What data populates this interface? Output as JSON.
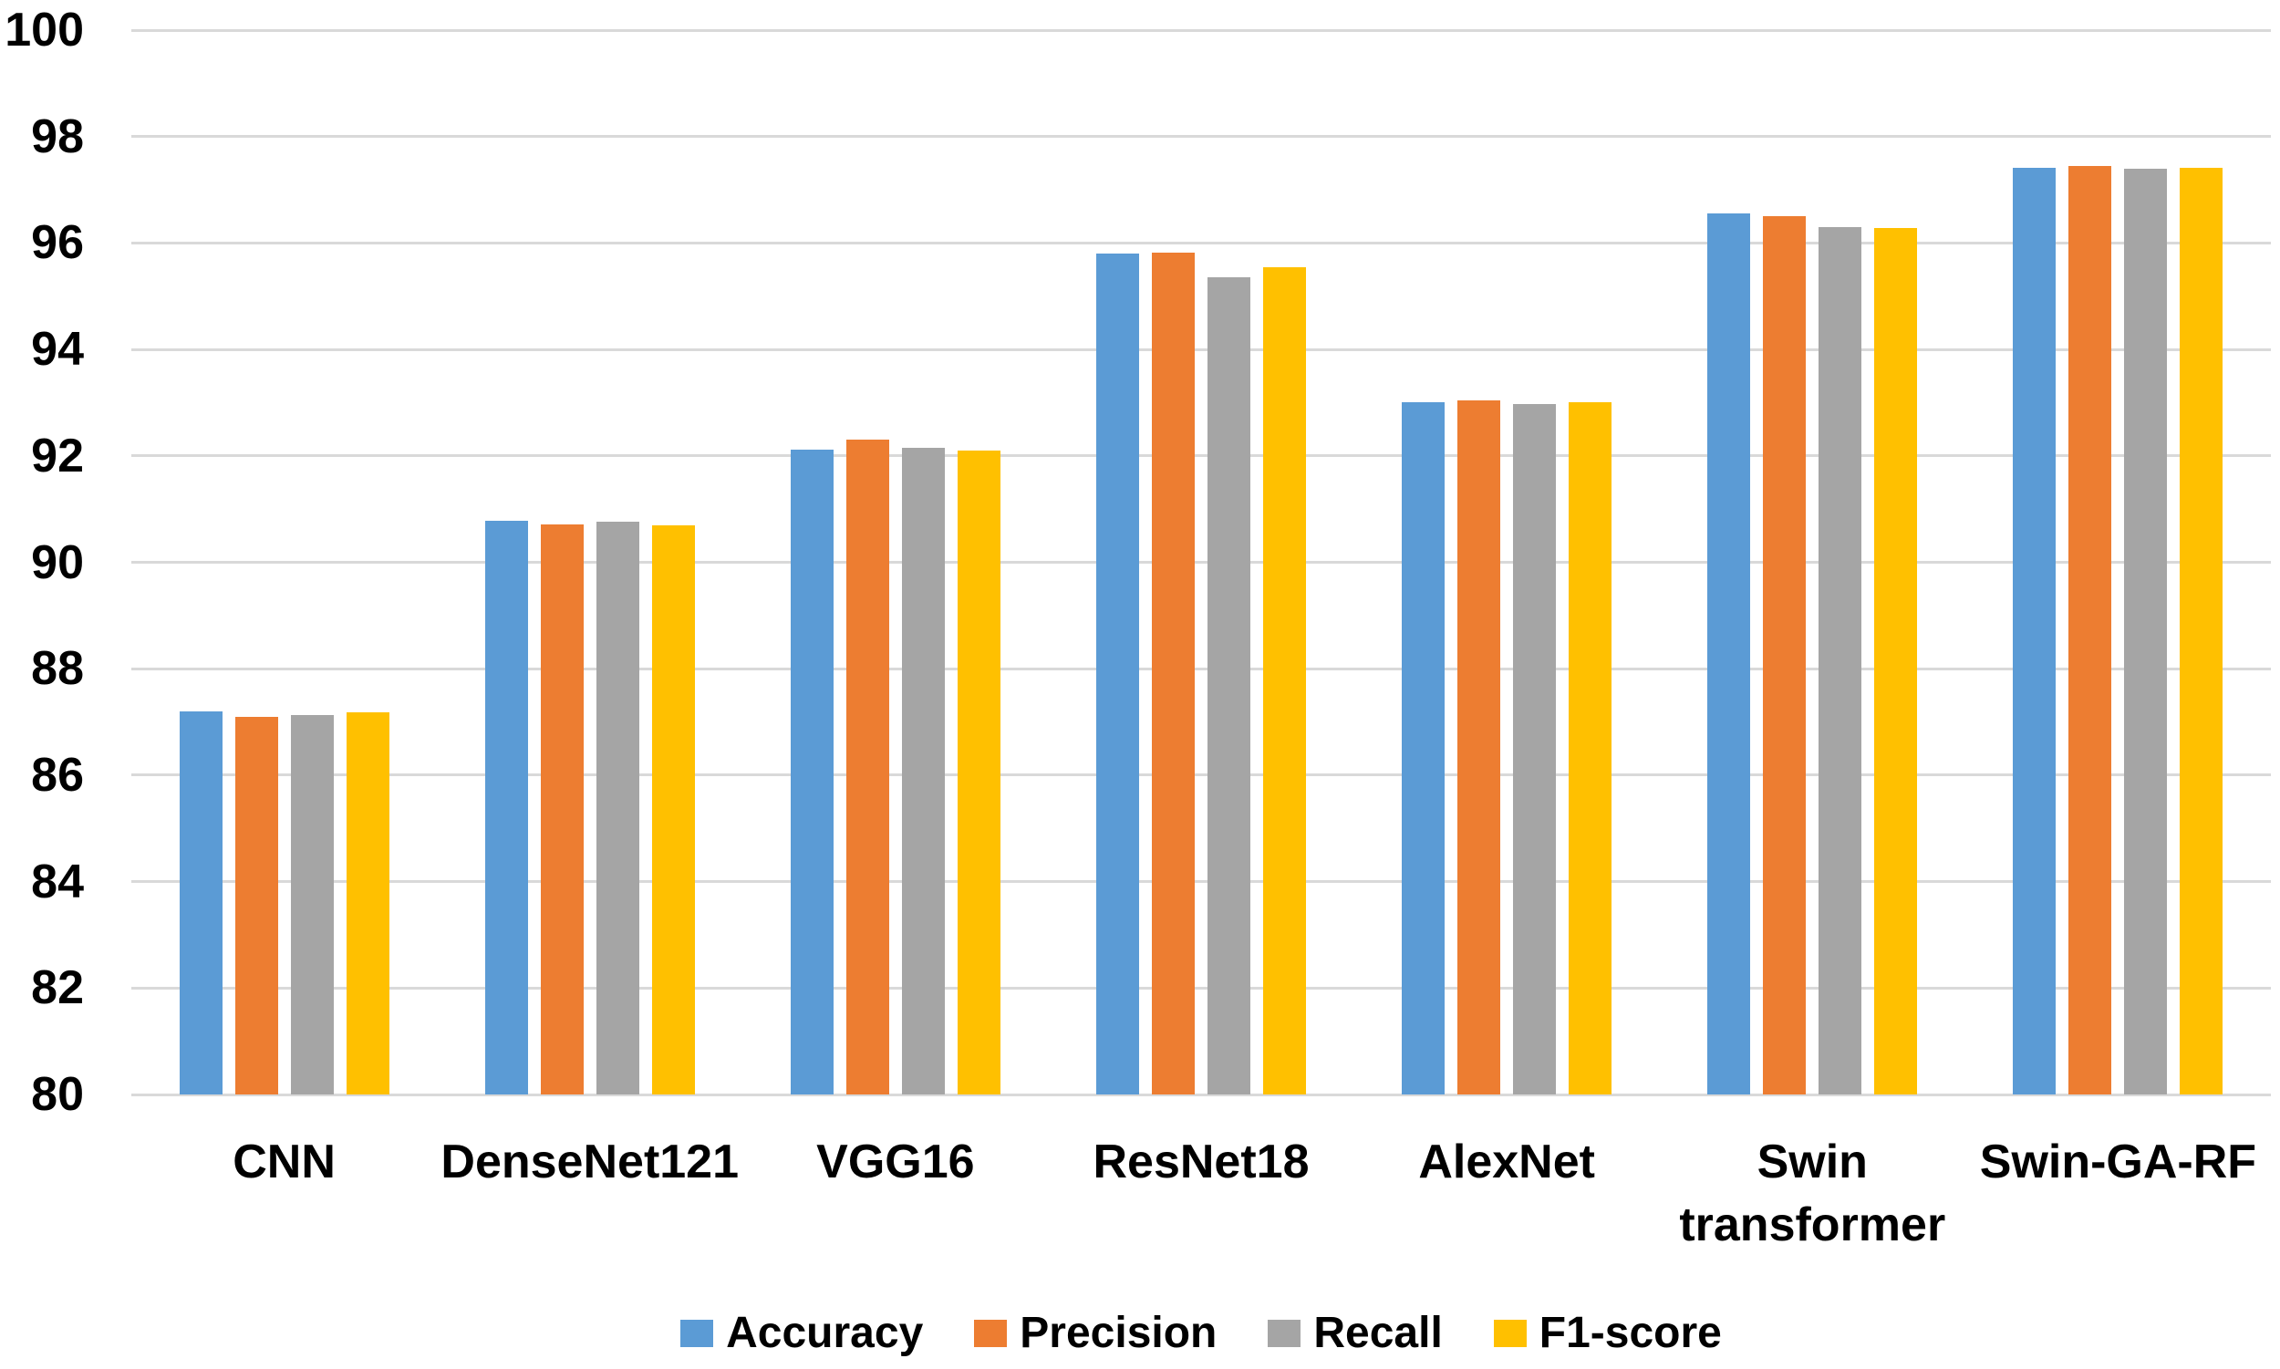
{
  "chart_data": {
    "type": "bar",
    "title": "",
    "xlabel": "",
    "ylabel": "",
    "ylim": [
      80,
      100
    ],
    "y_ticks": [
      80,
      82,
      84,
      86,
      88,
      90,
      92,
      94,
      96,
      98,
      100
    ],
    "grid": "horizontal",
    "gridline_color": "#D9D9D9",
    "legend_position": "bottom",
    "categories": [
      "CNN",
      "DenseNet121",
      "VGG16",
      "ResNet18",
      "AlexNet",
      "Swin transformer",
      "Swin-GA-RF"
    ],
    "category_label_lines": [
      [
        "CNN"
      ],
      [
        "DenseNet121"
      ],
      [
        "VGG16"
      ],
      [
        "ResNet18"
      ],
      [
        "AlexNet"
      ],
      [
        "Swin",
        "transformer"
      ],
      [
        "Swin-GA-RF"
      ]
    ],
    "series": [
      {
        "name": "Accuracy",
        "color": "#5B9BD5",
        "values": [
          87.2,
          90.78,
          92.12,
          95.8,
          93.0,
          96.55,
          97.42
        ]
      },
      {
        "name": "Precision",
        "color": "#ED7D31",
        "values": [
          87.1,
          90.72,
          92.3,
          95.82,
          93.05,
          96.5,
          97.45
        ]
      },
      {
        "name": "Recall",
        "color": "#A5A5A5",
        "values": [
          87.13,
          90.77,
          92.15,
          95.35,
          92.98,
          96.3,
          97.4
        ]
      },
      {
        "name": "F1-score",
        "color": "#FFC000",
        "values": [
          87.18,
          90.7,
          92.1,
          95.55,
          93.0,
          96.28,
          97.42
        ]
      }
    ]
  }
}
